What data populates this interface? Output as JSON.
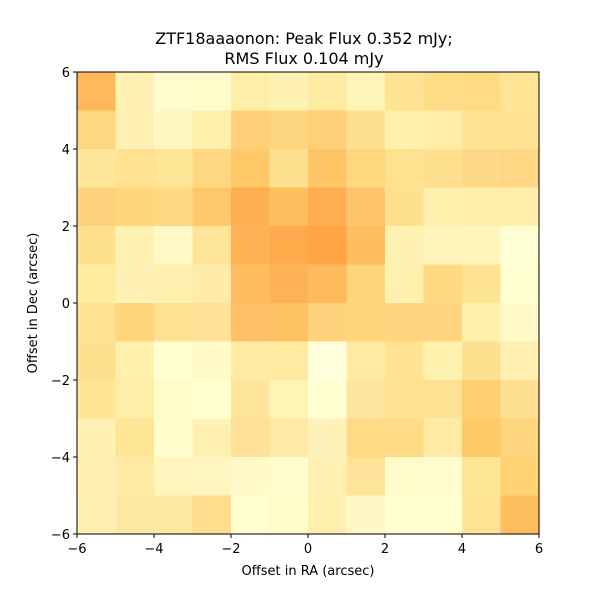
{
  "chart_data": {
    "type": "heatmap",
    "title_line1": "ZTF18aaaonon: Peak Flux 0.352 mJy;",
    "title_line2": "RMS Flux 0.104 mJy",
    "xlabel": "Offset in RA (arcsec)",
    "ylabel": "Offset in Dec (arcsec)",
    "xlim": [
      -6,
      6
    ],
    "ylim": [
      -6,
      6
    ],
    "x_ticks": [
      -6,
      -4,
      -2,
      0,
      2,
      4,
      6
    ],
    "y_ticks": [
      -6,
      -4,
      -2,
      0,
      2,
      4,
      6
    ],
    "x_tick_labels": [
      "−6",
      "−4",
      "−2",
      "0",
      "2",
      "4",
      "6"
    ],
    "y_tick_labels": [
      "−6",
      "−4",
      "−2",
      "0",
      "2",
      "4",
      "6"
    ],
    "grid": false,
    "colormap": "YlOrRd",
    "rows_top_to_bottom": [
      [
        "#ffb95a",
        "#fff1b3",
        "#fffbcc",
        "#fffccc",
        "#ffeeaa",
        "#fff2b3",
        "#ffeaa1",
        "#fff4b8",
        "#ffe392",
        "#ffdc86",
        "#ffdb84",
        "#ffe495"
      ],
      [
        "#ffd780",
        "#fff1b4",
        "#fff7bf",
        "#fff0ae",
        "#ffd077",
        "#ffd680",
        "#ffd077",
        "#ffe090",
        "#fff0ad",
        "#ffeda8",
        "#ffe293",
        "#ffe292"
      ],
      [
        "#ffe699",
        "#ffe191",
        "#ffe596",
        "#ffd780",
        "#ffc868",
        "#ffe08f",
        "#ffc667",
        "#ffd87e",
        "#ffe190",
        "#ffe08e",
        "#ffd98a",
        "#ffd783"
      ],
      [
        "#ffd37b",
        "#ffd67c",
        "#ffd881",
        "#ffc86a",
        "#ffb051",
        "#ffbf5f",
        "#ffae52",
        "#ffc569",
        "#ffe08e",
        "#fff0ae",
        "#ffefaa",
        "#ffefab"
      ],
      [
        "#ffe08e",
        "#fff1b1",
        "#fff9c6",
        "#ffe599",
        "#ffb354",
        "#ffab4c",
        "#ffa544",
        "#ffbd5f",
        "#fff2b3",
        "#fff4b9",
        "#fff5bb",
        "#ffffd6"
      ],
      [
        "#ffec9f",
        "#fff2b4",
        "#fff1b0",
        "#ffebaa",
        "#ffbd60",
        "#ffb156",
        "#ffba5c",
        "#ffd57a",
        "#fff0ad",
        "#ffda83",
        "#ffe394",
        "#ffffd2"
      ],
      [
        "#ffe294",
        "#ffd67c",
        "#ffe294",
        "#ffe295",
        "#ffbf66",
        "#ffc262",
        "#ffd27c",
        "#ffd67c",
        "#ffd67f",
        "#ffd67f",
        "#fff0ac",
        "#fff8c8"
      ],
      [
        "#ffe08f",
        "#fff0ae",
        "#ffffd1",
        "#fffac6",
        "#ffeaa1",
        "#ffeaa2",
        "#ffffdc",
        "#ffe9a3",
        "#ffe394",
        "#fff1ae",
        "#ffe08e",
        "#fff0b2"
      ],
      [
        "#ffe595",
        "#ffeeaa",
        "#fffcc9",
        "#ffffd0",
        "#ffe49c",
        "#fff3b6",
        "#ffffd1",
        "#ffe59d",
        "#ffe292",
        "#ffe193",
        "#ffd070",
        "#ffe093"
      ],
      [
        "#fff2b4",
        "#ffe697",
        "#ffffcd",
        "#fff1b1",
        "#ffe198",
        "#ffe9a4",
        "#fff2b8",
        "#ffdb85",
        "#ffdb86",
        "#ffeaa3",
        "#ffc869",
        "#ffd57e"
      ],
      [
        "#fff0b1",
        "#ffeaa3",
        "#fff5bd",
        "#fff5be",
        "#fffac8",
        "#fffccf",
        "#fff1b3",
        "#ffe399",
        "#fffbca",
        "#fffdd0",
        "#ffe596",
        "#ffd272"
      ],
      [
        "#fff1b3",
        "#ffe8a1",
        "#ffe8a0",
        "#ffdf8e",
        "#ffffd2",
        "#fffcc9",
        "#fff0ad",
        "#fff8c6",
        "#ffffd0",
        "#ffffd0",
        "#ffe495",
        "#ffbe60"
      ]
    ]
  }
}
